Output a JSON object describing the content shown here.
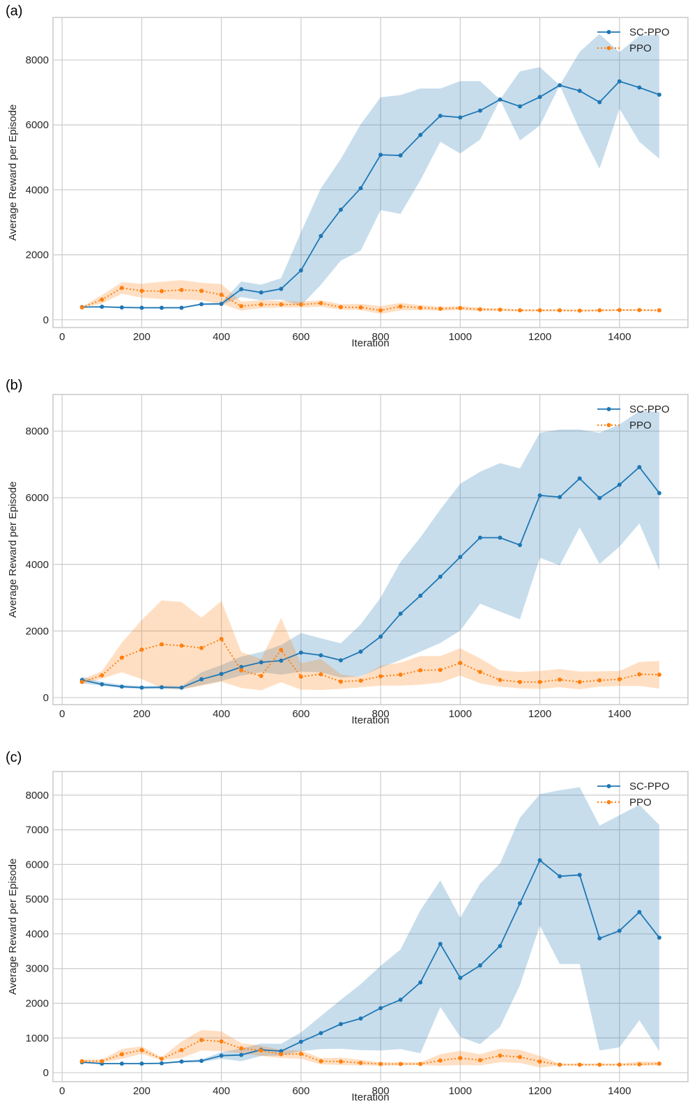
{
  "figure": {
    "panels": [
      "(a)",
      "(b)",
      "(c)"
    ]
  },
  "chart_data": [
    {
      "panel_label": "(a)",
      "type": "line",
      "title": "",
      "xlabel": "Iteration",
      "ylabel": "Average Reward per Episode",
      "xlim": [
        -23,
        1572
      ],
      "ylim": [
        -240,
        9310
      ],
      "xticks": [
        0,
        200,
        400,
        600,
        800,
        1000,
        1200,
        1400
      ],
      "yticks": [
        0,
        2000,
        4000,
        6000,
        8000
      ],
      "grid": true,
      "legend": "top-right",
      "x": [
        50,
        100,
        150,
        200,
        250,
        300,
        350,
        400,
        450,
        500,
        550,
        600,
        650,
        700,
        750,
        800,
        850,
        900,
        950,
        1000,
        1050,
        1100,
        1150,
        1200,
        1250,
        1300,
        1350,
        1400,
        1450,
        1500
      ],
      "series": [
        {
          "name": "SC-PPO",
          "color": "#1f77b4",
          "band_color": "#c6dbeb",
          "linestyle": "solid",
          "values": [
            390,
            400,
            380,
            370,
            370,
            370,
            480,
            490,
            940,
            840,
            950,
            1520,
            2580,
            3390,
            4050,
            5080,
            5060,
            5690,
            6280,
            6230,
            6440,
            6780,
            6570,
            6860,
            7220,
            7050,
            6700,
            7340,
            7150,
            6930
          ],
          "upper": [
            400,
            420,
            400,
            390,
            390,
            390,
            500,
            530,
            1180,
            1080,
            1280,
            2700,
            4050,
            4950,
            6020,
            6850,
            6920,
            7120,
            7120,
            7350,
            7350,
            6780,
            7650,
            7780,
            7220,
            8250,
            8800,
            8240,
            8750,
            8780
          ],
          "lower": [
            380,
            380,
            360,
            350,
            350,
            350,
            460,
            450,
            700,
            600,
            620,
            430,
            1080,
            1820,
            2130,
            3380,
            3260,
            4300,
            5480,
            5120,
            5550,
            6780,
            5520,
            5980,
            7220,
            5850,
            4650,
            6500,
            5480,
            4960
          ]
        },
        {
          "name": "PPO",
          "color": "#ff7f0e",
          "band_color": "#ffdcbd",
          "linestyle": "dotted",
          "values": [
            380,
            620,
            980,
            890,
            880,
            920,
            890,
            770,
            420,
            470,
            470,
            470,
            510,
            390,
            380,
            290,
            410,
            370,
            340,
            360,
            320,
            310,
            290,
            290,
            290,
            280,
            290,
            300,
            300,
            290
          ],
          "upper": [
            400,
            760,
            1160,
            1110,
            1170,
            1220,
            1140,
            1100,
            560,
            600,
            580,
            560,
            600,
            480,
            490,
            420,
            520,
            450,
            400,
            420,
            370,
            350,
            320,
            320,
            320,
            310,
            320,
            330,
            330,
            320
          ],
          "lower": [
            360,
            500,
            800,
            680,
            640,
            620,
            600,
            490,
            280,
            360,
            380,
            380,
            400,
            310,
            300,
            180,
            290,
            300,
            280,
            300,
            270,
            270,
            260,
            260,
            260,
            250,
            260,
            270,
            270,
            260
          ]
        }
      ]
    },
    {
      "panel_label": "(b)",
      "type": "line",
      "title": "",
      "xlabel": "Iteration",
      "ylabel": "Average Reward per Episode",
      "xlim": [
        -23,
        1572
      ],
      "ylim": [
        -210,
        9100
      ],
      "xticks": [
        0,
        200,
        400,
        600,
        800,
        1000,
        1200,
        1400
      ],
      "yticks": [
        0,
        2000,
        4000,
        6000,
        8000
      ],
      "grid": true,
      "legend": "top-right",
      "x": [
        50,
        100,
        150,
        200,
        250,
        300,
        350,
        400,
        450,
        500,
        550,
        600,
        650,
        700,
        750,
        800,
        850,
        900,
        950,
        1000,
        1050,
        1100,
        1150,
        1200,
        1250,
        1300,
        1350,
        1400,
        1450,
        1500
      ],
      "series": [
        {
          "name": "SC-PPO",
          "color": "#1f77b4",
          "band_color": "#c6dbeb",
          "linestyle": "solid",
          "values": [
            530,
            400,
            330,
            300,
            310,
            300,
            550,
            710,
            920,
            1060,
            1110,
            1350,
            1270,
            1120,
            1380,
            1830,
            2520,
            3060,
            3630,
            4220,
            4800,
            4800,
            4580,
            6070,
            6020,
            6580,
            5990,
            6390,
            6920,
            6140
          ],
          "upper": [
            630,
            470,
            380,
            350,
            360,
            340,
            760,
            980,
            1230,
            1370,
            1580,
            1940,
            1780,
            1630,
            2200,
            3000,
            4070,
            4810,
            5650,
            6420,
            6780,
            7040,
            6880,
            7950,
            8050,
            8050,
            7950,
            8200,
            8600,
            8580
          ],
          "lower": [
            430,
            360,
            290,
            260,
            260,
            250,
            380,
            500,
            660,
            760,
            690,
            780,
            760,
            600,
            640,
            900,
            1130,
            1380,
            1640,
            2010,
            2820,
            2580,
            2350,
            4200,
            3970,
            5110,
            4010,
            4530,
            5230,
            3830
          ]
        },
        {
          "name": "PPO",
          "color": "#ff7f0e",
          "band_color": "#ffdcbd",
          "linestyle": "dotted",
          "values": [
            470,
            670,
            1200,
            1440,
            1600,
            1560,
            1490,
            1760,
            820,
            650,
            1430,
            630,
            700,
            480,
            510,
            640,
            690,
            820,
            830,
            1040,
            770,
            530,
            470,
            470,
            540,
            470,
            520,
            550,
            700,
            690
          ],
          "upper": [
            540,
            800,
            1650,
            2330,
            2920,
            2870,
            2400,
            2900,
            1370,
            1160,
            2390,
            1030,
            1160,
            700,
            620,
            960,
            1050,
            1250,
            1250,
            1480,
            1180,
            820,
            770,
            800,
            860,
            780,
            790,
            800,
            1070,
            1100
          ],
          "lower": [
            420,
            570,
            760,
            560,
            290,
            250,
            350,
            480,
            290,
            220,
            460,
            240,
            230,
            260,
            310,
            360,
            360,
            390,
            450,
            660,
            430,
            330,
            280,
            260,
            310,
            250,
            330,
            350,
            350,
            270
          ]
        }
      ]
    },
    {
      "panel_label": "(c)",
      "type": "line",
      "title": "",
      "xlabel": "Iteration",
      "ylabel": "Average Reward per Episode",
      "xlim": [
        -23,
        1572
      ],
      "ylim": [
        -260,
        8680
      ],
      "xticks": [
        0,
        200,
        400,
        600,
        800,
        1000,
        1200,
        1400
      ],
      "yticks": [
        0,
        1000,
        2000,
        3000,
        4000,
        5000,
        6000,
        7000,
        8000
      ],
      "grid": true,
      "legend": "top-right",
      "x": [
        50,
        100,
        150,
        200,
        250,
        300,
        350,
        400,
        450,
        500,
        550,
        600,
        650,
        700,
        750,
        800,
        850,
        900,
        950,
        1000,
        1050,
        1100,
        1150,
        1200,
        1250,
        1300,
        1350,
        1400,
        1450,
        1500
      ],
      "series": [
        {
          "name": "SC-PPO",
          "color": "#1f77b4",
          "band_color": "#c6dbeb",
          "linestyle": "solid",
          "values": [
            300,
            260,
            260,
            260,
            270,
            320,
            340,
            490,
            510,
            660,
            620,
            890,
            1140,
            1400,
            1560,
            1860,
            2100,
            2600,
            3710,
            2730,
            3090,
            3650,
            4880,
            6120,
            5660,
            5700,
            3870,
            4090,
            4630,
            3890
          ],
          "upper": [
            330,
            280,
            280,
            280,
            290,
            350,
            380,
            590,
            700,
            840,
            830,
            1160,
            1630,
            2100,
            2550,
            3080,
            3550,
            4680,
            5540,
            4460,
            5450,
            6030,
            7350,
            8030,
            8140,
            8230,
            7120,
            7420,
            7720,
            7140
          ],
          "lower": [
            280,
            240,
            240,
            240,
            250,
            290,
            300,
            400,
            330,
            480,
            490,
            620,
            680,
            690,
            650,
            640,
            680,
            560,
            1890,
            1030,
            820,
            1320,
            2520,
            4240,
            3130,
            3130,
            640,
            730,
            1510,
            620
          ]
        },
        {
          "name": "PPO",
          "color": "#ff7f0e",
          "band_color": "#ffdcbd",
          "linestyle": "dotted",
          "values": [
            330,
            330,
            530,
            650,
            400,
            650,
            940,
            900,
            700,
            640,
            530,
            540,
            330,
            320,
            280,
            250,
            250,
            250,
            350,
            420,
            360,
            490,
            450,
            320,
            230,
            230,
            230,
            230,
            240,
            260
          ],
          "upper": [
            380,
            380,
            680,
            760,
            440,
            900,
            1230,
            1190,
            850,
            780,
            660,
            640,
            420,
            430,
            370,
            300,
            300,
            300,
            530,
            630,
            530,
            690,
            660,
            480,
            260,
            260,
            260,
            260,
            320,
            310
          ],
          "lower": [
            290,
            290,
            400,
            540,
            360,
            420,
            640,
            620,
            560,
            480,
            420,
            400,
            240,
            220,
            210,
            200,
            210,
            220,
            200,
            220,
            210,
            300,
            280,
            150,
            200,
            200,
            200,
            200,
            200,
            210
          ]
        }
      ]
    }
  ]
}
